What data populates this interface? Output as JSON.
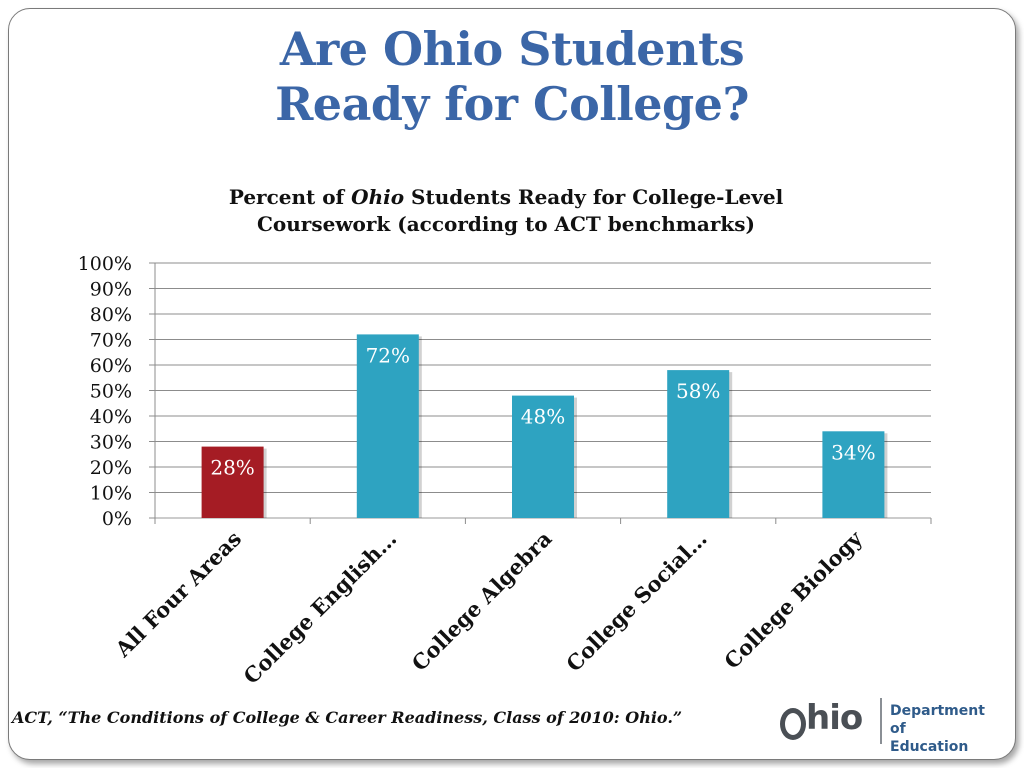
{
  "slide": {
    "title_line1": "Are Ohio Students",
    "title_line2": "Ready for College?",
    "source_citation": "ACT, “The Conditions of College & Career Readiness, Class of 2010: Ohio.”",
    "logo": {
      "wordmark": "Ohio",
      "wordmark_rest": "hio",
      "dept_line1": "Department",
      "dept_line2": "of Education"
    }
  },
  "chart_data": {
    "type": "bar",
    "title_part1": "Percent of ",
    "title_italic": "Ohio",
    "title_part2": " Students Ready for College-Level",
    "title_line2": "Coursework (according to ACT benchmarks)",
    "categories": [
      "All Four Areas",
      "College English…",
      "College Algebra",
      "College Social…",
      "College Biology"
    ],
    "values": [
      28,
      72,
      48,
      58,
      34
    ],
    "data_labels": [
      "28%",
      "72%",
      "48%",
      "58%",
      "34%"
    ],
    "colors": [
      "#a51c24",
      "#2ea3c1",
      "#2ea3c1",
      "#2ea3c1",
      "#2ea3c1"
    ],
    "ylim": [
      0,
      100
    ],
    "yticks": [
      "0%",
      "10%",
      "20%",
      "30%",
      "40%",
      "50%",
      "60%",
      "70%",
      "80%",
      "90%",
      "100%"
    ],
    "xlabel": "",
    "ylabel": "",
    "grid": true,
    "legend": "none"
  }
}
